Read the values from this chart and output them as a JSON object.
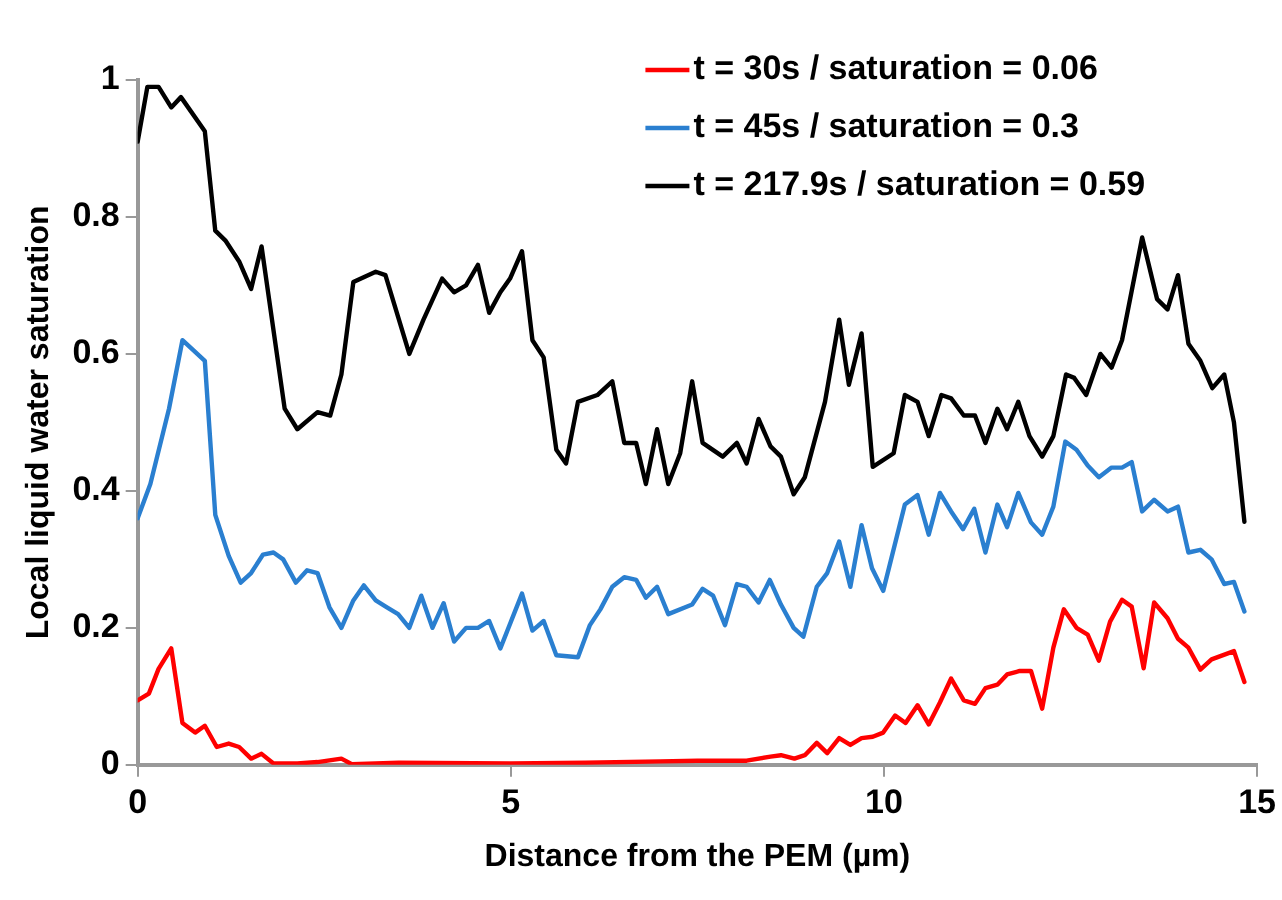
{
  "chart_data": {
    "type": "line",
    "xlabel": "Distance from the PEM (µm)",
    "ylabel": "Local liquid water saturation",
    "xlim": [
      0,
      15
    ],
    "xticks": [
      0,
      5,
      10,
      15
    ],
    "ylim": [
      0,
      1
    ],
    "yticks": [
      0,
      0.2,
      0.4,
      0.6,
      0.8,
      1
    ],
    "grid": false,
    "legend": "top right",
    "marker": "none",
    "line_style": "solid",
    "series": [
      {
        "name": "t = 30s / saturation = 0.06",
        "color": "#ff0000",
        "x": [
          0,
          0.15,
          0.28,
          0.45,
          0.6,
          0.77,
          0.9,
          1.06,
          1.22,
          1.36,
          1.52,
          1.66,
          1.82,
          2.14,
          2.41,
          2.73,
          2.87,
          3.5,
          5,
          6,
          7,
          7.5,
          8.16,
          8.48,
          8.62,
          8.8,
          8.94,
          9.1,
          9.24,
          9.4,
          9.55,
          9.7,
          9.85,
          9.99,
          10.15,
          10.29,
          10.45,
          10.6,
          10.75,
          10.9,
          11.07,
          11.22,
          11.36,
          11.52,
          11.65,
          11.82,
          11.97,
          12.12,
          12.27,
          12.41,
          12.58,
          12.73,
          12.88,
          13.03,
          13.19,
          13.32,
          13.48,
          13.62,
          13.8,
          13.94,
          14.08,
          14.24,
          14.39,
          14.69,
          14.83
        ],
        "values": [
          0.094,
          0.104,
          0.14,
          0.17,
          0.061,
          0.047,
          0.057,
          0.026,
          0.031,
          0.026,
          0.009,
          0.016,
          0.002,
          0.002,
          0.004,
          0.009,
          0.001,
          0.003,
          0.002,
          0.003,
          0.005,
          0.006,
          0.006,
          0.012,
          0.014,
          0.009,
          0.014,
          0.032,
          0.017,
          0.039,
          0.029,
          0.039,
          0.041,
          0.047,
          0.072,
          0.061,
          0.087,
          0.059,
          0.091,
          0.126,
          0.094,
          0.089,
          0.112,
          0.117,
          0.132,
          0.137,
          0.137,
          0.082,
          0.171,
          0.227,
          0.2,
          0.19,
          0.152,
          0.209,
          0.241,
          0.231,
          0.141,
          0.237,
          0.214,
          0.184,
          0.171,
          0.139,
          0.154,
          0.166,
          0.121
        ]
      },
      {
        "name": "t = 45s / saturation = 0.3",
        "color": "#2a7fd0",
        "x": [
          0,
          0.17,
          0.42,
          0.6,
          0.9,
          1.04,
          1.22,
          1.38,
          1.52,
          1.68,
          1.82,
          1.95,
          2.12,
          2.27,
          2.41,
          2.57,
          2.73,
          2.89,
          3.03,
          3.19,
          3.34,
          3.49,
          3.64,
          3.8,
          3.95,
          4.1,
          4.24,
          4.4,
          4.56,
          4.71,
          4.86,
          5.15,
          5.29,
          5.44,
          5.61,
          5.9,
          6.06,
          6.2,
          6.36,
          6.52,
          6.68,
          6.81,
          6.96,
          7.11,
          7.43,
          7.57,
          7.71,
          7.87,
          8.03,
          8.16,
          8.32,
          8.47,
          8.62,
          8.79,
          8.92,
          9.1,
          9.24,
          9.4,
          9.55,
          9.7,
          9.84,
          9.99,
          10.28,
          10.45,
          10.6,
          10.75,
          10.9,
          11.06,
          11.21,
          11.36,
          11.52,
          11.65,
          11.8,
          11.97,
          12.12,
          12.27,
          12.43,
          12.58,
          12.73,
          12.88,
          13.05,
          13.19,
          13.32,
          13.46,
          13.62,
          13.8,
          13.94,
          14.08,
          14.24,
          14.39,
          14.56,
          14.69,
          14.83
        ],
        "values": [
          0.36,
          0.41,
          0.52,
          0.62,
          0.59,
          0.365,
          0.305,
          0.266,
          0.28,
          0.307,
          0.31,
          0.3,
          0.266,
          0.284,
          0.28,
          0.23,
          0.2,
          0.24,
          0.262,
          0.24,
          0.23,
          0.22,
          0.2,
          0.247,
          0.2,
          0.236,
          0.18,
          0.2,
          0.2,
          0.21,
          0.17,
          0.25,
          0.196,
          0.21,
          0.16,
          0.157,
          0.204,
          0.227,
          0.26,
          0.274,
          0.27,
          0.244,
          0.26,
          0.22,
          0.234,
          0.257,
          0.247,
          0.204,
          0.264,
          0.26,
          0.237,
          0.27,
          0.234,
          0.2,
          0.187,
          0.26,
          0.28,
          0.326,
          0.26,
          0.35,
          0.287,
          0.254,
          0.38,
          0.394,
          0.336,
          0.397,
          0.37,
          0.344,
          0.374,
          0.31,
          0.38,
          0.347,
          0.397,
          0.354,
          0.336,
          0.377,
          0.472,
          0.46,
          0.437,
          0.42,
          0.434,
          0.434,
          0.442,
          0.37,
          0.387,
          0.37,
          0.377,
          0.31,
          0.314,
          0.3,
          0.264,
          0.267,
          0.224
        ]
      },
      {
        "name": "t = 217.9s / saturation = 0.59",
        "color": "#000000",
        "x": [
          0,
          0.13,
          0.28,
          0.45,
          0.58,
          0.9,
          1.04,
          1.18,
          1.36,
          1.52,
          1.66,
          1.97,
          2.14,
          2.41,
          2.58,
          2.73,
          2.89,
          3.19,
          3.32,
          3.64,
          3.83,
          4.08,
          4.24,
          4.4,
          4.56,
          4.71,
          4.86,
          4.99,
          5.15,
          5.29,
          5.44,
          5.61,
          5.74,
          5.9,
          6.16,
          6.36,
          6.52,
          6.68,
          6.81,
          6.96,
          7.11,
          7.27,
          7.43,
          7.57,
          7.84,
          8.03,
          8.16,
          8.32,
          8.48,
          8.62,
          8.79,
          8.94,
          9.21,
          9.4,
          9.53,
          9.7,
          9.85,
          10.13,
          10.28,
          10.45,
          10.6,
          10.77,
          10.9,
          11.07,
          11.22,
          11.36,
          11.52,
          11.65,
          11.8,
          11.95,
          12.12,
          12.27,
          12.44,
          12.55,
          12.71,
          12.9,
          13.05,
          13.19,
          13.46,
          13.66,
          13.8,
          13.94,
          14.08,
          14.24,
          14.4,
          14.56,
          14.69,
          14.83
        ],
        "values": [
          0.91,
          0.99,
          0.99,
          0.96,
          0.975,
          0.925,
          0.78,
          0.765,
          0.735,
          0.695,
          0.757,
          0.52,
          0.49,
          0.515,
          0.51,
          0.57,
          0.705,
          0.72,
          0.715,
          0.6,
          0.65,
          0.71,
          0.69,
          0.7,
          0.73,
          0.66,
          0.69,
          0.71,
          0.75,
          0.62,
          0.595,
          0.46,
          0.44,
          0.53,
          0.54,
          0.56,
          0.47,
          0.47,
          0.41,
          0.49,
          0.41,
          0.455,
          0.56,
          0.47,
          0.45,
          0.47,
          0.44,
          0.505,
          0.465,
          0.45,
          0.395,
          0.42,
          0.53,
          0.65,
          0.555,
          0.63,
          0.435,
          0.455,
          0.54,
          0.53,
          0.48,
          0.54,
          0.535,
          0.51,
          0.51,
          0.47,
          0.52,
          0.49,
          0.53,
          0.48,
          0.45,
          0.48,
          0.57,
          0.565,
          0.54,
          0.6,
          0.58,
          0.62,
          0.77,
          0.68,
          0.665,
          0.715,
          0.615,
          0.59,
          0.55,
          0.57,
          0.5,
          0.355
        ]
      }
    ]
  }
}
